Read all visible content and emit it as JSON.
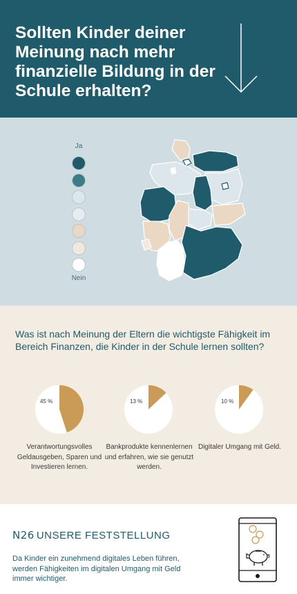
{
  "header": {
    "title": "Sollten Kinder deiner Meinung nach mehr finanzielle Bildung in der Schule erhalten?",
    "arrow_icon": "arrow-down-icon"
  },
  "map": {
    "scale_top_label": "Ja",
    "scale_bottom_label": "Nein",
    "scale_colors": [
      "#1f5b6b",
      "#3f7a88",
      "#dde6ea",
      "#e6ecef",
      "#ead8c5",
      "#f2e8dc",
      "#ffffff"
    ]
  },
  "skills": {
    "question": "Was ist nach Meinung der Eltern die wichtigste Fähigkeit im Bereich Finanzen, die Kinder in der Schule lernen sollten?",
    "accent_color": "#c99b57"
  },
  "chart_data": [
    {
      "type": "pie",
      "categories": [
        "Verantwortungsvolles Geldausgeben, Sparen und Investieren lernen."
      ],
      "values": [
        45
      ],
      "labels": [
        "45 %"
      ],
      "caption": "Verantwortungsvolles Geldausgeben, Sparen und Investieren lernen."
    },
    {
      "type": "pie",
      "categories": [
        "Bankprodukte kennenlernen und erfahren, wie sie genutzt werden."
      ],
      "values": [
        13
      ],
      "labels": [
        "13 %"
      ],
      "caption": "Bankprodukte kennenlernen und erfahren, wie sie genutzt werden."
    },
    {
      "type": "pie",
      "categories": [
        "Digitaler Umgang mit Geld."
      ],
      "values": [
        10
      ],
      "labels": [
        "10 %"
      ],
      "caption": "Digitaler Umgang mit Geld."
    }
  ],
  "footer": {
    "logo": "N26",
    "heading": "UNSERE FESTSTELLUNG",
    "conclusion": "Da Kinder ein zunehmend digitales Leben führen, werden Fähigkeiten im digitalen Umgang mit Geld immer wichtiger.",
    "phone_icon": "smartphone-piggy-bank-icon"
  }
}
